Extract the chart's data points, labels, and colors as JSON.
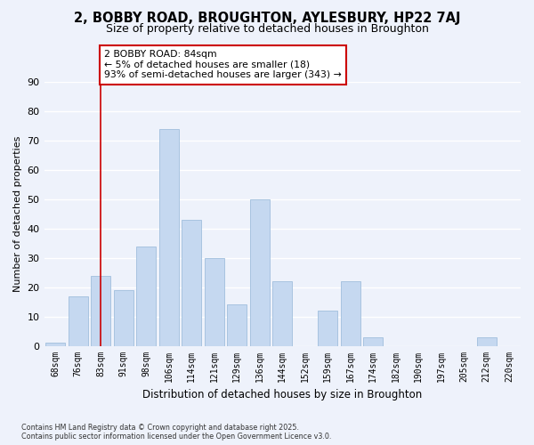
{
  "title_line1": "2, BOBBY ROAD, BROUGHTON, AYLESBURY, HP22 7AJ",
  "title_line2": "Size of property relative to detached houses in Broughton",
  "xlabel": "Distribution of detached houses by size in Broughton",
  "ylabel": "Number of detached properties",
  "categories": [
    "68sqm",
    "76sqm",
    "83sqm",
    "91sqm",
    "98sqm",
    "106sqm",
    "114sqm",
    "121sqm",
    "129sqm",
    "136sqm",
    "144sqm",
    "152sqm",
    "159sqm",
    "167sqm",
    "174sqm",
    "182sqm",
    "190sqm",
    "197sqm",
    "205sqm",
    "212sqm",
    "220sqm"
  ],
  "values": [
    1,
    17,
    24,
    19,
    34,
    74,
    43,
    30,
    14,
    50,
    22,
    0,
    12,
    22,
    3,
    0,
    0,
    0,
    0,
    3,
    0
  ],
  "bar_color": "#c5d8f0",
  "bar_edge_color": "#a8c4e0",
  "vline_x_idx": 2,
  "vline_color": "#cc0000",
  "annotation_title": "2 BOBBY ROAD: 84sqm",
  "annotation_line2": "← 5% of detached houses are smaller (18)",
  "annotation_line3": "93% of semi-detached houses are larger (343) →",
  "annotation_box_color": "#ffffff",
  "annotation_box_edge": "#cc0000",
  "ylim": [
    0,
    90
  ],
  "yticks": [
    0,
    10,
    20,
    30,
    40,
    50,
    60,
    70,
    80,
    90
  ],
  "footnote1": "Contains HM Land Registry data © Crown copyright and database right 2025.",
  "footnote2": "Contains public sector information licensed under the Open Government Licence v3.0.",
  "bg_color": "#eef2fb",
  "grid_color": "#ffffff",
  "title1_fontsize": 10.5,
  "title2_fontsize": 9
}
